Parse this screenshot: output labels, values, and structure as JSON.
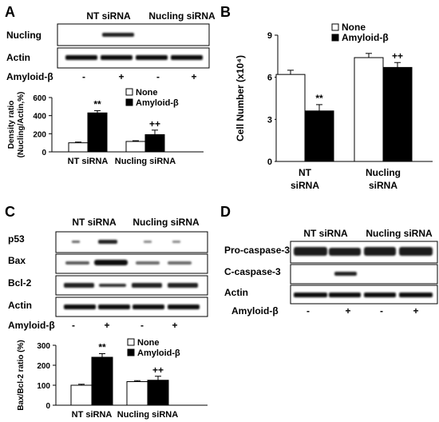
{
  "panels": {
    "A": {
      "letter": "A",
      "groups": [
        "NT siRNA",
        "Nucling siRNA"
      ],
      "blot_rows": [
        "Nucling",
        "Actin"
      ],
      "treatment_label": "Amyloid-β",
      "treatment_signs": [
        "-",
        "+",
        "-",
        "+"
      ]
    },
    "B": {
      "letter": "B"
    },
    "C": {
      "letter": "C",
      "groups": [
        "NT siRNA",
        "Nucling siRNA"
      ],
      "blot_rows": [
        "p53",
        "Bax",
        "Bcl-2",
        "Actin"
      ],
      "treatment_label": "Amyloid-β",
      "treatment_signs": [
        "-",
        "+",
        "-",
        "+"
      ]
    },
    "D": {
      "letter": "D",
      "groups": [
        "NT siRNA",
        "Nucling siRNA"
      ],
      "blot_rows": [
        "Pro-caspase-3",
        "C-caspase-3",
        "Actin"
      ],
      "treatment_label": "Amyloid-β",
      "treatment_signs": [
        "-",
        "+",
        "-",
        "+"
      ]
    }
  },
  "chart_data": [
    {
      "panel": "A",
      "type": "bar",
      "categories": [
        "NT siRNA",
        "Nucling siRNA"
      ],
      "series": [
        {
          "name": "None",
          "values": [
            100,
            115
          ],
          "errors": [
            8,
            8
          ],
          "color": "#ffffff"
        },
        {
          "name": "Amyloid-β",
          "values": [
            430,
            190
          ],
          "errors": [
            25,
            50
          ],
          "color": "#000000"
        }
      ],
      "annotations": [
        {
          "series": "Amyloid-β",
          "category": "NT siRNA",
          "text": "**"
        },
        {
          "series": "Amyloid-β",
          "category": "Nucling siRNA",
          "text": "++"
        }
      ],
      "ylabel": "Density ratio (Nucling/Actin,%)",
      "ylim": [
        0,
        600
      ],
      "yticks": [
        "0",
        "200",
        "400",
        "600"
      ],
      "legend_position": "top-right",
      "grid": false
    },
    {
      "panel": "B",
      "type": "bar",
      "categories": [
        "NT siRNA",
        "Nucling siRNA"
      ],
      "category_lines": [
        [
          "NT",
          "siRNA"
        ],
        [
          "Nucling",
          "siRNA"
        ]
      ],
      "series": [
        {
          "name": "None",
          "values": [
            6.2,
            7.4
          ],
          "errors": [
            0.3,
            0.3
          ],
          "color": "#ffffff"
        },
        {
          "name": "Amyloid-β",
          "values": [
            3.6,
            6.7
          ],
          "errors": [
            0.45,
            0.35
          ],
          "color": "#000000"
        }
      ],
      "annotations": [
        {
          "series": "Amyloid-β",
          "category": "NT siRNA",
          "text": "**"
        },
        {
          "series": "Amyloid-β",
          "category": "Nucling siRNA",
          "text": "++"
        }
      ],
      "ylabel": "Cell Number (x10⁴)",
      "ylim": [
        0,
        9
      ],
      "yticks": [
        "0",
        "3",
        "6",
        "9"
      ],
      "legend_position": "top",
      "grid": false
    },
    {
      "panel": "C",
      "type": "bar",
      "categories": [
        "NT siRNA",
        "Nucling siRNA"
      ],
      "series": [
        {
          "name": "None",
          "values": [
            100,
            118
          ],
          "errors": [
            5,
            5
          ],
          "color": "#ffffff"
        },
        {
          "name": "Amyloid-β",
          "values": [
            240,
            125
          ],
          "errors": [
            18,
            20
          ],
          "color": "#000000"
        }
      ],
      "annotations": [
        {
          "series": "Amyloid-β",
          "category": "NT siRNA",
          "text": "**"
        },
        {
          "series": "Amyloid-β",
          "category": "Nucling siRNA",
          "text": "++"
        }
      ],
      "ylabel": "Bax/Bcl-2 ratio (%)",
      "ylim": [
        0,
        300
      ],
      "yticks": [
        "0",
        "100",
        "200",
        "300"
      ],
      "legend_position": "top-right",
      "grid": false
    }
  ]
}
